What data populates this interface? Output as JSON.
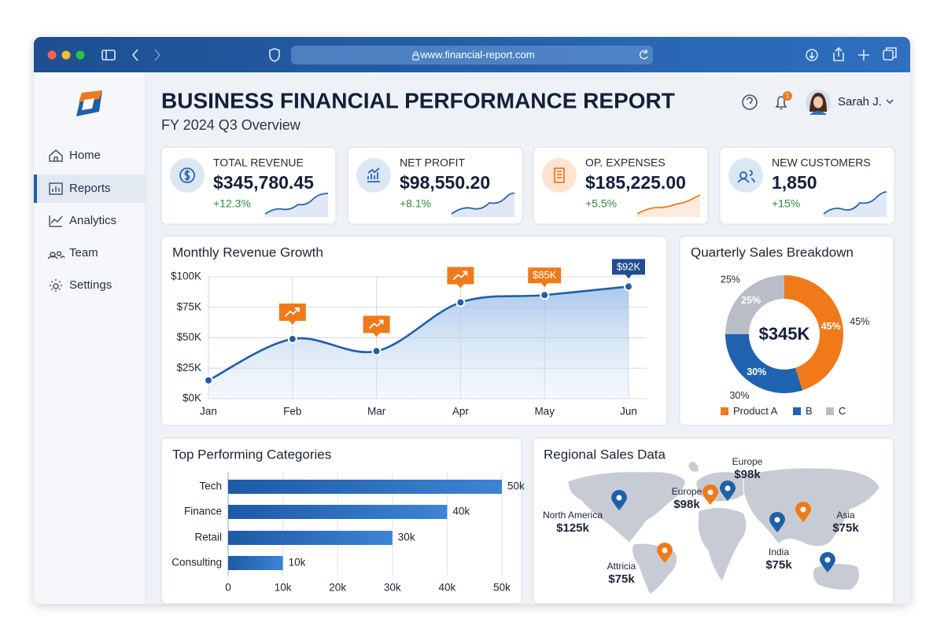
{
  "browser": {
    "url": "www.financial-report.com"
  },
  "sidebar": {
    "items": [
      "Home",
      "Reports",
      "Analytics",
      "Team",
      "Settings"
    ]
  },
  "header": {
    "title": "BUSINESS FINANCIAL PERFORMANCE REPORT",
    "subtitle": "FY 2024 Q3 Overview",
    "notifications": "1",
    "user": "Sarah J."
  },
  "kpis": [
    {
      "label": "TOTAL REVENUE",
      "value": "$345,780.45",
      "change": "+12.3%"
    },
    {
      "label": "NET PROFIT",
      "value": "$98,550.20",
      "change": "+8.1%"
    },
    {
      "label": "OP. EXPENSES",
      "value": "$185,225.00",
      "change": "+5.5%"
    },
    {
      "label": "NEW CUSTOMERS",
      "value": "1,850",
      "change": "+15%"
    }
  ],
  "chart_data": [
    {
      "type": "line",
      "title": "Monthly Revenue Growth",
      "color": "#1f5fa8",
      "categories": [
        "Jan",
        "Feb",
        "Mar",
        "Apr",
        "May",
        "Jun"
      ],
      "values": [
        15,
        49,
        39,
        79,
        85,
        92
      ],
      "value_labels": [
        null,
        null,
        null,
        null,
        "$85K",
        "$92K"
      ],
      "ylim": [
        0,
        100
      ],
      "yticks": [
        {
          "value": 0,
          "label": "$0K"
        },
        {
          "value": 25,
          "label": "$25K"
        },
        {
          "value": 50,
          "label": "$50K"
        },
        {
          "value": 75,
          "label": "$75K"
        },
        {
          "value": 100,
          "label": "$100K"
        }
      ],
      "grid": true
    },
    {
      "type": "donut",
      "title": "Quarterly Sales Breakdown",
      "center_label": "$345K",
      "categories": [
        "Product A",
        "B",
        "C"
      ],
      "values": [
        45,
        30,
        25
      ],
      "value_labels": [
        "45%",
        "30%",
        "25%"
      ],
      "colors": [
        "#f07a1a",
        "#1f63b0",
        "#b9bec6"
      ]
    },
    {
      "type": "hbar",
      "title": "Top Performing Categories",
      "color": "#2468b8",
      "categories": [
        "Tech",
        "Finance",
        "Retail",
        "Consulting"
      ],
      "values": [
        50,
        40,
        30,
        10
      ],
      "value_labels": [
        "50k",
        "40k",
        "30k",
        "10k"
      ],
      "xlim": [
        0,
        50
      ],
      "xticks": [
        0,
        {
          "value": 10,
          "label": "10k"
        },
        {
          "value": 20,
          "label": "20k"
        },
        {
          "value": 30,
          "label": "30k"
        },
        {
          "value": 40,
          "label": "40k"
        },
        {
          "value": 50,
          "label": "50k"
        }
      ],
      "grid": true
    }
  ],
  "map": {
    "title": "Regional Sales Data",
    "regions": [
      {
        "name": "Europe",
        "value": "$98k"
      },
      {
        "name": "Europe",
        "value": "$98k"
      },
      {
        "name": "North America",
        "value": "$125k"
      },
      {
        "name": "Asia",
        "value": "$75k"
      },
      {
        "name": "India",
        "value": "$75k"
      },
      {
        "name": "Attricia",
        "value": "$75k"
      }
    ]
  }
}
